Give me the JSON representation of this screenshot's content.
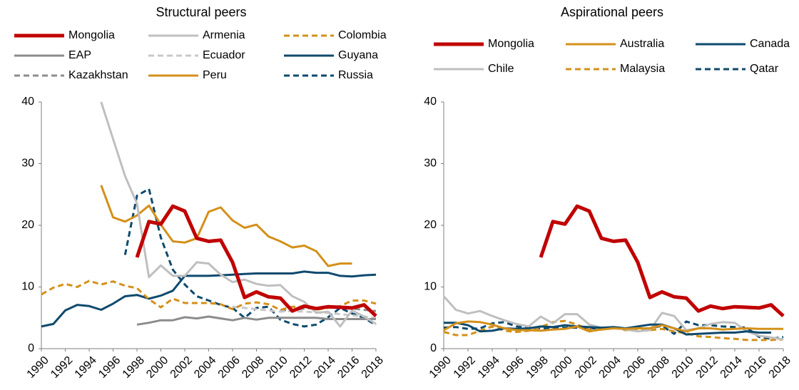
{
  "chart_data": [
    {
      "type": "line",
      "title": "Structural peers",
      "x": [
        1990,
        1991,
        1992,
        1993,
        1994,
        1995,
        1996,
        1997,
        1998,
        1999,
        2000,
        2001,
        2002,
        2003,
        2004,
        2005,
        2006,
        2007,
        2008,
        2009,
        2010,
        2011,
        2012,
        2013,
        2014,
        2015,
        2016,
        2017,
        2018
      ],
      "xlim": [
        1990,
        2018
      ],
      "xticks": [
        1990,
        1992,
        1994,
        1996,
        1998,
        2000,
        2002,
        2004,
        2006,
        2008,
        2010,
        2012,
        2014,
        2016,
        2018
      ],
      "ylim": [
        0,
        40
      ],
      "yticks": [
        0,
        10,
        20,
        30,
        40
      ],
      "grid": false,
      "series": [
        {
          "name": "Mongolia",
          "color": "#c00000",
          "dashed": false,
          "values": [
            null,
            null,
            null,
            null,
            null,
            null,
            null,
            null,
            14.8,
            20.6,
            20.2,
            23.1,
            22.3,
            17.9,
            17.4,
            17.6,
            14.0,
            8.3,
            9.2,
            8.4,
            8.2,
            6.1,
            6.9,
            6.5,
            6.8,
            6.7,
            6.6,
            7.1,
            5.3
          ]
        },
        {
          "name": "Armenia",
          "color": "#bfbfbf",
          "dashed": false,
          "values": [
            null,
            null,
            null,
            null,
            null,
            40,
            34,
            28,
            23.5,
            11.6,
            13.5,
            11.8,
            11.8,
            14.0,
            13.8,
            12.0,
            10.8,
            11.2,
            10.5,
            10.2,
            10.3,
            8.5,
            7.6,
            5.8,
            6.0,
            3.6,
            6.2,
            5.2,
            4.0
          ]
        },
        {
          "name": "Colombia",
          "color": "#d4901a",
          "dashed": true,
          "values": [
            8.8,
            9.9,
            10.5,
            10.0,
            11.0,
            10.4,
            10.9,
            10.2,
            9.8,
            8.0,
            6.7,
            8.1,
            7.4,
            7.4,
            7.4,
            7.2,
            6.4,
            7.3,
            7.5,
            7.2,
            6.3,
            6.8,
            6.8,
            6.3,
            6.6,
            6.9,
            7.8,
            7.8,
            7.3
          ]
        },
        {
          "name": "EAP",
          "color": "#8c8c8c",
          "dashed": false,
          "values": [
            null,
            null,
            null,
            null,
            null,
            null,
            null,
            null,
            3.9,
            4.2,
            4.6,
            4.6,
            5.1,
            4.9,
            5.2,
            4.9,
            4.6,
            5.0,
            4.7,
            5.0,
            5.0,
            5.0,
            5.0,
            5.0,
            4.8,
            4.8,
            4.8,
            4.8,
            4.8
          ]
        },
        {
          "name": "Ecuador",
          "color": "#c8c8c8",
          "dashed": true,
          "values": [
            null,
            null,
            null,
            null,
            null,
            null,
            null,
            null,
            null,
            null,
            null,
            null,
            null,
            null,
            null,
            null,
            6.8,
            6.6,
            6.4,
            6.2,
            6.0,
            6.1,
            6.0,
            5.9,
            5.8,
            5.6,
            5.4,
            5.2,
            5.0
          ]
        },
        {
          "name": "Guyana",
          "color": "#0e4a6e",
          "dashed": false,
          "values": [
            3.6,
            4.0,
            6.2,
            7.1,
            6.9,
            6.3,
            7.3,
            8.5,
            8.7,
            8.1,
            8.6,
            9.4,
            11.8,
            11.8,
            11.8,
            11.9,
            12.0,
            12.1,
            12.2,
            12.2,
            12.2,
            12.2,
            12.5,
            12.3,
            12.3,
            11.8,
            11.7,
            11.9,
            12.0
          ]
        },
        {
          "name": "Kazakhstan",
          "color": "#8c8c8c",
          "dashed": true,
          "values": [
            null,
            null,
            null,
            null,
            null,
            null,
            null,
            null,
            null,
            null,
            null,
            null,
            null,
            null,
            null,
            null,
            null,
            null,
            null,
            null,
            6.2,
            6.3,
            6.5,
            6.6,
            6.7,
            6.6,
            6.5,
            6.3,
            6.1
          ]
        },
        {
          "name": "Peru",
          "color": "#d4901a",
          "dashed": false,
          "values": [
            null,
            null,
            null,
            null,
            null,
            26.5,
            21.3,
            20.6,
            21.6,
            23.2,
            20.1,
            17.4,
            17.2,
            17.9,
            22.2,
            22.9,
            20.8,
            19.6,
            20.1,
            18.2,
            17.4,
            16.4,
            16.7,
            15.8,
            13.4,
            13.8,
            13.8,
            null,
            null
          ]
        },
        {
          "name": "Russia",
          "color": "#0e4a6e",
          "dashed": true,
          "values": [
            null,
            null,
            null,
            null,
            null,
            null,
            null,
            15.2,
            24.8,
            25.9,
            18.0,
            12.8,
            10.4,
            8.5,
            7.8,
            7.1,
            6.6,
            5.0,
            6.6,
            6.8,
            4.7,
            4.0,
            3.6,
            3.9,
            5.1,
            6.6,
            5.7,
            5.0,
            3.8
          ]
        }
      ]
    },
    {
      "type": "line",
      "title": "Aspirational peers",
      "x": [
        1990,
        1991,
        1992,
        1993,
        1994,
        1995,
        1996,
        1997,
        1998,
        1999,
        2000,
        2001,
        2002,
        2003,
        2004,
        2005,
        2006,
        2007,
        2008,
        2009,
        2010,
        2011,
        2012,
        2013,
        2014,
        2015,
        2016,
        2017,
        2018
      ],
      "xlim": [
        1990,
        2018
      ],
      "xticks": [
        1990,
        1992,
        1994,
        1996,
        1998,
        2000,
        2002,
        2004,
        2006,
        2008,
        2010,
        2012,
        2014,
        2016,
        2018
      ],
      "ylim": [
        0,
        40
      ],
      "yticks": [
        0,
        10,
        20,
        30,
        40
      ],
      "grid": false,
      "series": [
        {
          "name": "Mongolia",
          "color": "#c00000",
          "dashed": false,
          "values": [
            null,
            null,
            null,
            null,
            null,
            null,
            null,
            null,
            14.8,
            20.6,
            20.2,
            23.1,
            22.3,
            17.9,
            17.4,
            17.6,
            14.0,
            8.3,
            9.2,
            8.4,
            8.2,
            6.1,
            6.9,
            6.5,
            6.8,
            6.7,
            6.6,
            7.1,
            5.3
          ]
        },
        {
          "name": "Australia",
          "color": "#d4901a",
          "dashed": false,
          "values": [
            3.0,
            4.1,
            4.4,
            4.3,
            3.9,
            3.3,
            3.0,
            3.0,
            2.9,
            3.1,
            3.2,
            3.6,
            2.8,
            3.1,
            3.3,
            3.2,
            3.3,
            3.3,
            3.8,
            3.3,
            2.8,
            3.3,
            3.3,
            3.1,
            3.2,
            3.3,
            3.2,
            3.2,
            3.2
          ]
        },
        {
          "name": "Canada",
          "color": "#0e4a6e",
          "dashed": false,
          "values": [
            4.2,
            4.2,
            3.8,
            2.8,
            2.9,
            3.3,
            3.2,
            3.3,
            3.6,
            3.5,
            3.8,
            3.6,
            3.5,
            3.4,
            3.5,
            3.3,
            3.6,
            3.9,
            3.9,
            3.3,
            2.3,
            2.4,
            2.5,
            2.6,
            2.6,
            2.8,
            2.6,
            2.6,
            null
          ]
        },
        {
          "name": "Chile",
          "color": "#bfbfbf",
          "dashed": false,
          "values": [
            8.5,
            6.3,
            5.7,
            6.1,
            5.3,
            4.6,
            4.0,
            3.6,
            5.2,
            4.1,
            5.6,
            5.6,
            3.9,
            3.4,
            3.4,
            3.1,
            2.8,
            3.0,
            5.8,
            5.3,
            3.0,
            3.3,
            4.0,
            4.3,
            4.2,
            2.8,
            2.1,
            1.8,
            1.5
          ]
        },
        {
          "name": "Malaysia",
          "color": "#d4901a",
          "dashed": true,
          "values": [
            2.7,
            2.2,
            2.2,
            2.9,
            3.6,
            2.9,
            2.7,
            2.9,
            3.5,
            4.3,
            4.5,
            3.9,
            3.1,
            3.1,
            3.4,
            3.0,
            3.2,
            3.0,
            3.2,
            2.8,
            2.5,
            2.0,
            1.9,
            1.7,
            1.6,
            1.4,
            1.4,
            1.4,
            1.5
          ]
        },
        {
          "name": "Qatar",
          "color": "#0e4a6e",
          "dashed": true,
          "values": [
            3.4,
            3.5,
            3.2,
            3.3,
            4.1,
            4.3,
            3.6,
            3.4,
            3.3,
            3.3,
            3.4,
            3.4,
            3.3,
            3.3,
            3.3,
            3.3,
            3.3,
            3.3,
            3.7,
            2.4,
            4.4,
            3.8,
            3.8,
            3.6,
            3.5,
            3.4,
            1.9,
            1.6,
            1.9
          ]
        }
      ]
    }
  ]
}
